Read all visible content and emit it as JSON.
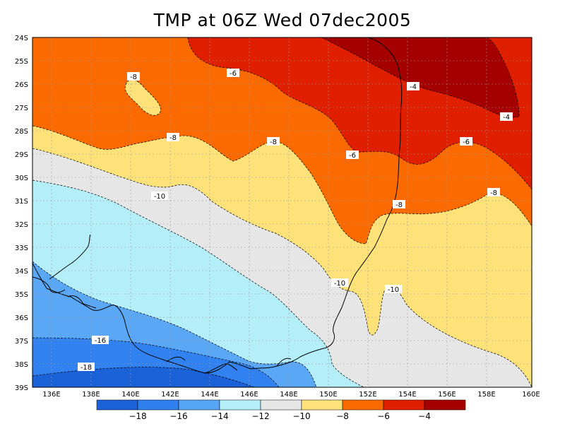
{
  "title": "TMP at 06Z Wed 07dec2005",
  "latitude_labels": [
    "24S",
    "25S",
    "26S",
    "27S",
    "28S",
    "29S",
    "30S",
    "31S",
    "32S",
    "33S",
    "34S",
    "35S",
    "36S",
    "37S",
    "38S",
    "39S"
  ],
  "longitude_labels": [
    "136E",
    "138E",
    "140E",
    "142E",
    "144E",
    "146E",
    "148E",
    "150E",
    "152E",
    "154E",
    "156E",
    "158E",
    "160E"
  ],
  "contour_labels": [
    "-8",
    "-6",
    "-4",
    "-4",
    "-8",
    "-8",
    "-6",
    "-6",
    "-8",
    "-10",
    "-8",
    "-10",
    "-10",
    "-16",
    "-18"
  ],
  "colorbar": {
    "colors": [
      "#1b61d8",
      "#2f7fee",
      "#57a6f5",
      "#b4eef8",
      "#e6e6e6",
      "#fde27a",
      "#fb6a00",
      "#e01e00",
      "#a50000"
    ],
    "labels": [
      "−18",
      "−16",
      "−14",
      "−12",
      "−10",
      "−8",
      "−6",
      "−4"
    ]
  },
  "colors": {
    "cold_deep": "#1b61d8",
    "cold": "#3182f0",
    "cool": "#5aa8f5",
    "light_cyan": "#b4eef8",
    "grey": "#e6e6e6",
    "yellow": "#fde27a",
    "orange": "#fb6a00",
    "red": "#e01e00",
    "dark_red": "#a50000"
  }
}
